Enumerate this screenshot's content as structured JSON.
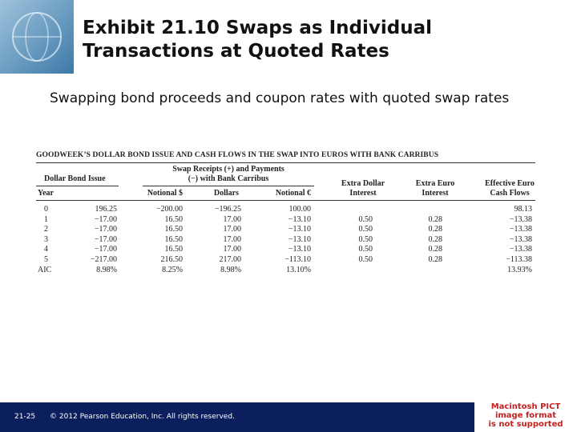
{
  "header": {
    "title_lines": [
      "Exhibit 21.10  Swaps as Individual",
      "Transactions at Quoted Rates"
    ],
    "subtitle": "Swapping bond proceeds and coupon rates with quoted swap rates"
  },
  "table": {
    "title": "GOODWEEK’S DOLLAR BOND ISSUE AND CASH FLOWS IN THE SWAP INTO EUROS WITH BANK CARRIBUS",
    "group_headers": {
      "bond": "Dollar Bond Issue",
      "swap": [
        "Swap Receipts (+) and Payments",
        "(−) with Bank Carribus"
      ],
      "extra_dollar": [
        "Extra Dollar",
        "Interest"
      ],
      "extra_euro": [
        "Extra Euro",
        "Interest"
      ],
      "effective": [
        "Effective Euro",
        "Cash Flows"
      ]
    },
    "columns": [
      "Year",
      "Notional $",
      "Dollars",
      "Notional €"
    ],
    "rows": [
      [
        "0",
        "196.25",
        "−200.00",
        "−196.25",
        "100.00",
        null,
        null,
        "98.13"
      ],
      [
        "1",
        "−17.00",
        "16.50",
        "17.00",
        "−13.10",
        "0.50",
        "0.28",
        "−13.38"
      ],
      [
        "2",
        "−17.00",
        "16.50",
        "17.00",
        "−13.10",
        "0.50",
        "0.28",
        "−13.38"
      ],
      [
        "3",
        "−17.00",
        "16.50",
        "17.00",
        "−13.10",
        "0.50",
        "0.28",
        "−13.38"
      ],
      [
        "4",
        "−17.00",
        "16.50",
        "17.00",
        "−13.10",
        "0.50",
        "0.28",
        "−13.38"
      ],
      [
        "5",
        "−217.00",
        "216.50",
        "217.00",
        "−113.10",
        "0.50",
        "0.28",
        "−113.38"
      ],
      [
        "AIC",
        "8.98%",
        "8.25%",
        "8.98%",
        "13.10%",
        null,
        null,
        "13.93%"
      ]
    ]
  },
  "footer": {
    "page": "21-25",
    "copyright": "© 2012 Pearson Education, Inc. All rights reserved.",
    "image_placeholder": [
      "Macintosh PICT",
      "image format",
      "is not supported"
    ]
  }
}
